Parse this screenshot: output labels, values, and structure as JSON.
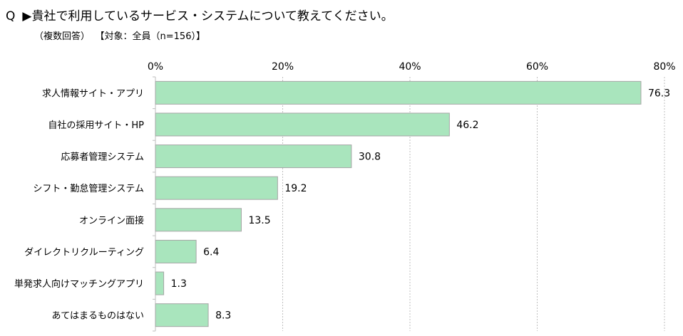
{
  "question": {
    "prefix": "Q",
    "text": "▶貴社で利用しているサービス・システムについて教えてください。",
    "note_multi": "（複数回答）",
    "note_target": "【対象：全員（n=156）】"
  },
  "chart_data": {
    "type": "bar",
    "orientation": "horizontal",
    "categories": [
      "求人情報サイト・アプリ",
      "自社の採用サイト・HP",
      "応募者管理システム",
      "シフト・勤怠管理システム",
      "オンライン面接",
      "ダイレクトリクルーティング",
      "単発求人向けマッチングアプリ",
      "あてはまるものはない"
    ],
    "values": [
      76.3,
      46.2,
      30.8,
      19.2,
      13.5,
      6.4,
      1.3,
      8.3
    ],
    "value_labels": [
      "76.3",
      "46.2",
      "30.8",
      "19.2",
      "13.5",
      "6.4",
      "1.3",
      "8.3"
    ],
    "xlim": [
      0,
      80
    ],
    "ticks": [
      0,
      20,
      40,
      60,
      80
    ],
    "tick_labels": [
      "0%",
      "20%",
      "40%",
      "60%",
      "80%"
    ],
    "axis_position": "top",
    "grid": true,
    "bar_color": "#a9e5bd",
    "bar_border_color": "#a6a6a6",
    "grid_color": "#bfbfbf"
  }
}
